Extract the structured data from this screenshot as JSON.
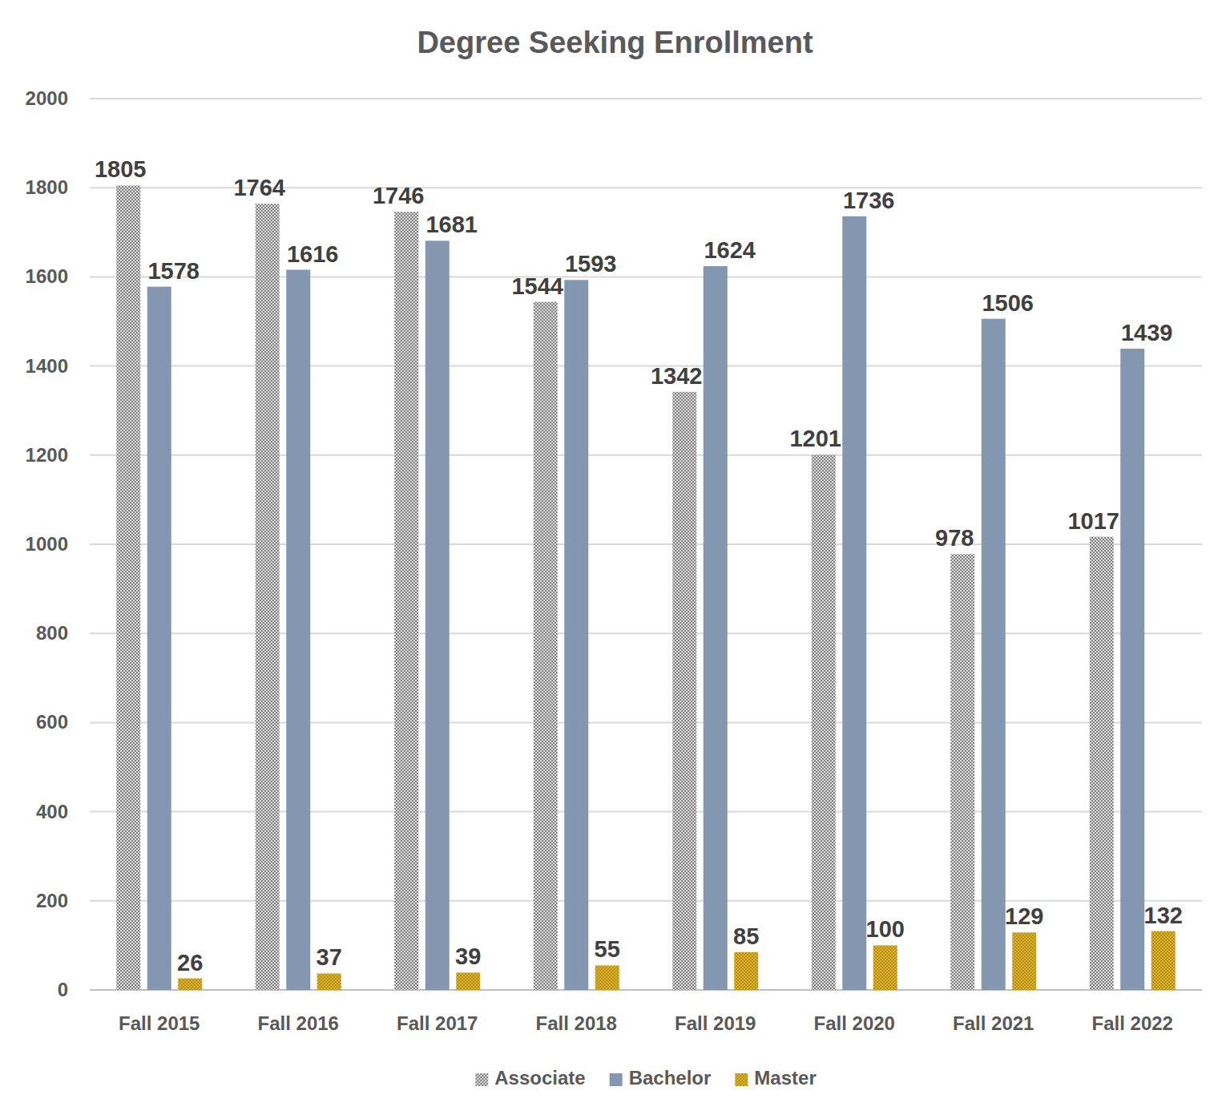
{
  "chart_data": {
    "type": "bar",
    "title": "Degree Seeking Enrollment",
    "categories": [
      "Fall 2015",
      "Fall 2016",
      "Fall 2017",
      "Fall 2018",
      "Fall 2019",
      "Fall 2020",
      "Fall 2021",
      "Fall 2022"
    ],
    "series": [
      {
        "name": "Associate",
        "color": "#7f7f7f",
        "values": [
          1805,
          1764,
          1746,
          1544,
          1342,
          1201,
          978,
          1017
        ]
      },
      {
        "name": "Bachelor",
        "color": "#8497b0",
        "values": [
          1578,
          1616,
          1681,
          1593,
          1624,
          1736,
          1506,
          1439
        ]
      },
      {
        "name": "Master",
        "color": "#bf9000",
        "values": [
          26,
          37,
          39,
          55,
          85,
          100,
          129,
          132
        ]
      }
    ],
    "ylim": [
      0,
      2000
    ],
    "yticks": [
      0,
      200,
      400,
      600,
      800,
      1000,
      1200,
      1400,
      1600,
      1800,
      2000
    ],
    "grid": true,
    "data_labels": true,
    "legend": "bottom"
  }
}
